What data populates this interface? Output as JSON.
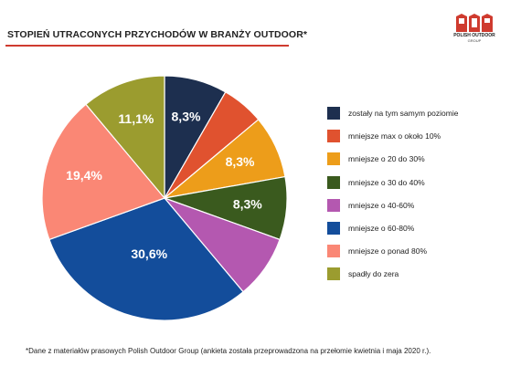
{
  "header": {
    "title": "STOPIEŃ UTRACONYCH PRZYCHODÓW W BRANŻY OUTDOOR*",
    "logo_text": "POLISH OUTDOOR",
    "logo_subtext": "GROUP",
    "accent_color": "#cf3b2f"
  },
  "chart_data": {
    "type": "pie",
    "title": "STOPIEŃ UTRACONYCH PRZYCHODÓW W BRANŻY OUTDOOR*",
    "legend_position": "right",
    "slices": [
      {
        "label": "zostały na tym samym poziomie",
        "value": 8.3,
        "color": "#1d2f4f",
        "value_label": "8,3%"
      },
      {
        "label": "mniejsze max o około 10%",
        "value": 5.6,
        "color": "#e0522f",
        "value_label": ""
      },
      {
        "label": "mniejsze o 20 do 30%",
        "value": 8.3,
        "color": "#ed9d1a",
        "value_label": "8,3%"
      },
      {
        "label": "mniejsze o 30 do 40%",
        "value": 8.3,
        "color": "#3a5a1e",
        "value_label": "8,3%"
      },
      {
        "label": "mniejsze o 40-60%",
        "value": 8.4,
        "color": "#b458b0",
        "value_label": ""
      },
      {
        "label": "mniejsze o 60-80%",
        "value": 30.6,
        "color": "#134d9b",
        "value_label": "30,6%"
      },
      {
        "label": "mniejsze o ponad 80%",
        "value": 19.4,
        "color": "#fa8775",
        "value_label": "19,4%"
      },
      {
        "label": "spadły do zera",
        "value": 11.1,
        "color": "#9b9c2f",
        "value_label": "11,1%"
      }
    ]
  },
  "footnote": "*Dane z materiałów prasowych Polish Outdoor Group (ankieta została przeprowadzona na przełomie kwietnia i maja 2020 r.)."
}
